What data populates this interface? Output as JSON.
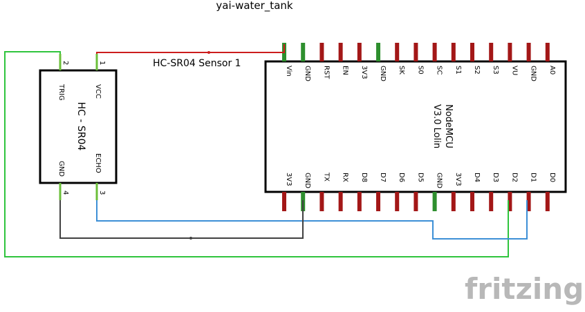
{
  "diagram": {
    "title": "yai-water_tank",
    "sensor_instance_label": "HC-SR04 Sensor 1",
    "watermark": "fritzing"
  },
  "sensor": {
    "name_line": "HC - SR04",
    "pins": [
      {
        "num": "2",
        "name": "TRIG"
      },
      {
        "num": "1",
        "name": "VCC"
      },
      {
        "num": "4",
        "name": "GND"
      },
      {
        "num": "3",
        "name": "ECHO"
      }
    ]
  },
  "board": {
    "name_line1": "NodeMCU",
    "name_line2": "V3.0 Lolin",
    "top_pins": [
      "Vin",
      "GND",
      "RST",
      "EN",
      "3V3",
      "GND",
      "SK",
      "S0",
      "SC",
      "S1",
      "S2",
      "S3",
      "VU",
      "GND",
      "A0"
    ],
    "bottom_pins": [
      "3V3",
      "GND",
      "TX",
      "RX",
      "D8",
      "D7",
      "D6",
      "D5",
      "GND",
      "3V3",
      "D4",
      "D3",
      "D2",
      "D1",
      "D0"
    ]
  },
  "colors": {
    "wire_red": "#cc1c1c",
    "wire_green": "#2ec43c",
    "wire_blue": "#3c8fd6",
    "wire_black": "#404040",
    "pin_red": "#a31717",
    "pin_green": "#2e8f2e"
  }
}
